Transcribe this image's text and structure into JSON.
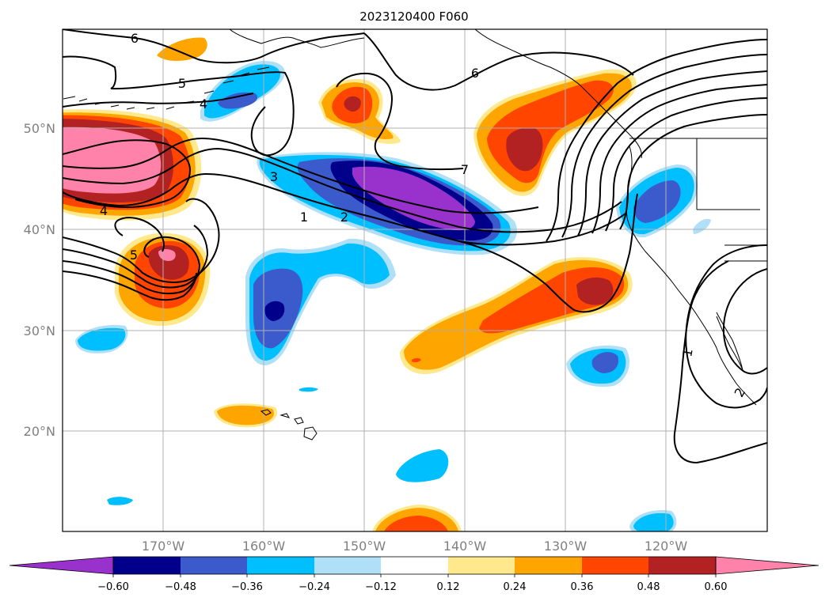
{
  "title": "2023120400 F060",
  "map": {
    "lat_labels": [
      "50°N",
      "40°N",
      "30°N",
      "20°N"
    ],
    "lon_labels": [
      "170°W",
      "160°W",
      "150°W",
      "140°W",
      "130°W",
      "120°W"
    ],
    "contour_labels": [
      "6",
      "5",
      "4",
      "3",
      "1",
      "2",
      "7",
      "6",
      "4",
      "5",
      "1",
      "2"
    ]
  },
  "colorbar": {
    "tick_labels": [
      "−0.60",
      "−0.48",
      "−0.36",
      "−0.24",
      "−0.12",
      "0.12",
      "0.24",
      "0.36",
      "0.48",
      "0.60"
    ],
    "colors": {
      "below": "#9932cc",
      "c1": "#00008b",
      "c2": "#3b5bcc",
      "c3": "#00bfff",
      "c4": "#b0e0f8",
      "c5": "#ffffff",
      "c6": "#ffe98c",
      "c7": "#ffa500",
      "c8": "#ff4500",
      "c9": "#b22222",
      "above": "#ff82ab"
    }
  }
}
